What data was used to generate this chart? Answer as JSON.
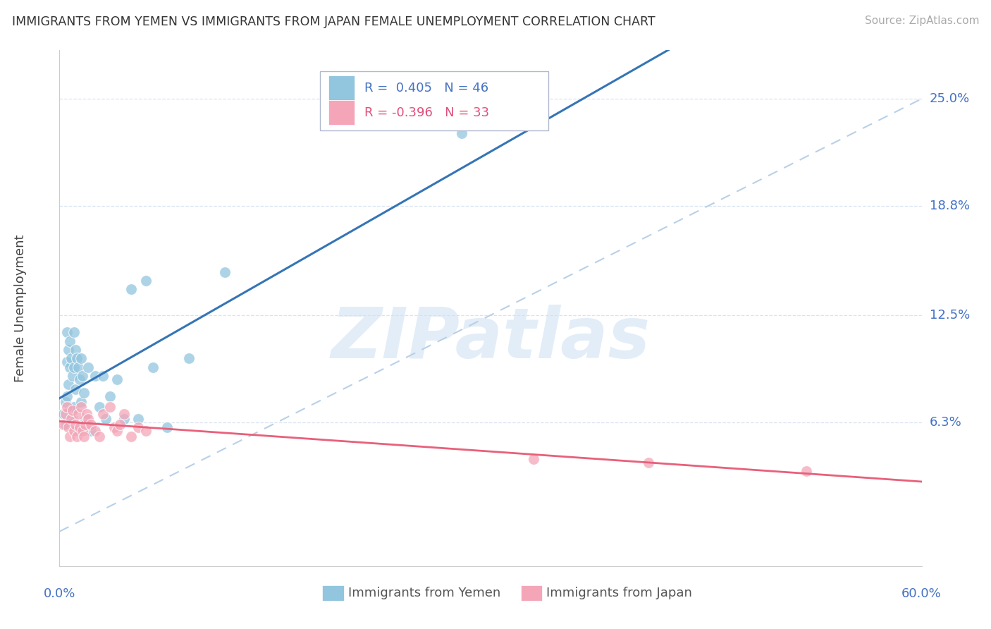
{
  "title": "IMMIGRANTS FROM YEMEN VS IMMIGRANTS FROM JAPAN FEMALE UNEMPLOYMENT CORRELATION CHART",
  "source": "Source: ZipAtlas.com",
  "ylabel": "Female Unemployment",
  "ytick_labels": [
    "25.0%",
    "18.8%",
    "12.5%",
    "6.3%"
  ],
  "ytick_values": [
    0.25,
    0.188,
    0.125,
    0.063
  ],
  "xlim": [
    0.0,
    0.6
  ],
  "ylim": [
    -0.02,
    0.278
  ],
  "watermark_text": "ZIPatlas",
  "color_yemen": "#92c5de",
  "color_japan": "#f4a6b8",
  "color_trend_yemen": "#3575b5",
  "color_trend_japan": "#e8607a",
  "color_dashed": "#b8d0e8",
  "background_color": "#ffffff",
  "grid_color": "#d8e4f0",
  "yemen_x": [
    0.003,
    0.004,
    0.004,
    0.005,
    0.005,
    0.005,
    0.006,
    0.006,
    0.007,
    0.007,
    0.008,
    0.008,
    0.009,
    0.009,
    0.01,
    0.01,
    0.01,
    0.011,
    0.011,
    0.012,
    0.012,
    0.013,
    0.013,
    0.014,
    0.015,
    0.015,
    0.016,
    0.017,
    0.018,
    0.02,
    0.022,
    0.025,
    0.028,
    0.03,
    0.032,
    0.035,
    0.04,
    0.045,
    0.05,
    0.055,
    0.06,
    0.065,
    0.075,
    0.09,
    0.115,
    0.28
  ],
  "yemen_y": [
    0.068,
    0.075,
    0.062,
    0.115,
    0.098,
    0.078,
    0.105,
    0.085,
    0.11,
    0.095,
    0.1,
    0.07,
    0.09,
    0.065,
    0.115,
    0.095,
    0.072,
    0.105,
    0.082,
    0.1,
    0.06,
    0.095,
    0.058,
    0.088,
    0.1,
    0.075,
    0.09,
    0.08,
    0.065,
    0.095,
    0.058,
    0.09,
    0.072,
    0.09,
    0.065,
    0.078,
    0.088,
    0.065,
    0.14,
    0.065,
    0.145,
    0.095,
    0.06,
    0.1,
    0.15,
    0.23
  ],
  "japan_x": [
    0.003,
    0.004,
    0.005,
    0.006,
    0.007,
    0.008,
    0.009,
    0.01,
    0.011,
    0.012,
    0.013,
    0.014,
    0.015,
    0.016,
    0.017,
    0.018,
    0.019,
    0.02,
    0.022,
    0.025,
    0.028,
    0.03,
    0.035,
    0.038,
    0.04,
    0.042,
    0.045,
    0.05,
    0.055,
    0.06,
    0.33,
    0.41,
    0.52
  ],
  "japan_y": [
    0.062,
    0.068,
    0.072,
    0.06,
    0.055,
    0.065,
    0.07,
    0.058,
    0.062,
    0.055,
    0.068,
    0.06,
    0.072,
    0.058,
    0.055,
    0.062,
    0.068,
    0.065,
    0.062,
    0.058,
    0.055,
    0.068,
    0.072,
    0.06,
    0.058,
    0.062,
    0.068,
    0.055,
    0.06,
    0.058,
    0.042,
    0.04,
    0.035
  ]
}
